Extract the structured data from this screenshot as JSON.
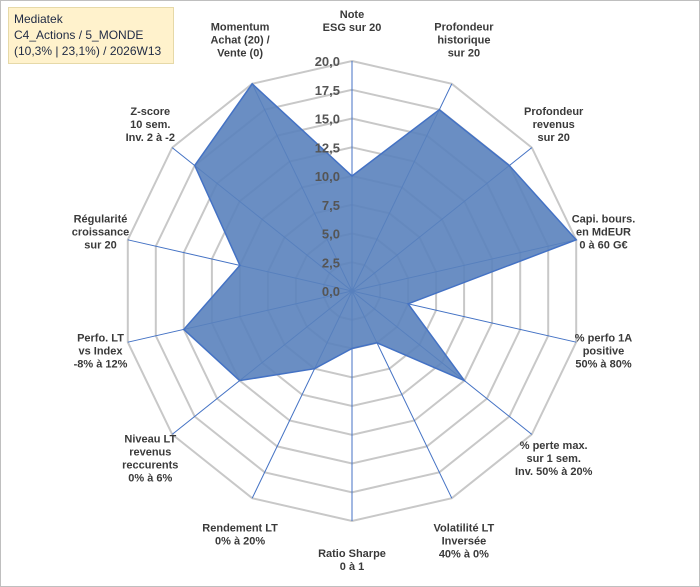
{
  "title": {
    "line1": "Mediatek",
    "line2": "C4_Actions / 5_MONDE",
    "line3": "(10,3% | 23,1%) / 2026W13"
  },
  "colors": {
    "fill": "#5a82bd",
    "stroke": "#4472c4",
    "grid": "#c8c8c8",
    "spoke": "#4472c4",
    "title_bg": "#fff2cc"
  },
  "chart_data": {
    "type": "radar",
    "r_min": 0,
    "r_max": 20,
    "ticks": [
      "0,0",
      "2,5",
      "5,0",
      "7,5",
      "10,0",
      "12,5",
      "15,0",
      "17,5",
      "20,0"
    ],
    "tick_values": [
      0,
      2.5,
      5,
      7.5,
      10,
      12.5,
      15,
      17.5,
      20
    ],
    "categories": [
      {
        "lines": [
          "Note",
          "ESG sur 20"
        ],
        "anchor": "middle"
      },
      {
        "lines": [
          "Profondeur",
          "historique",
          "sur 20"
        ],
        "anchor": "middle"
      },
      {
        "lines": [
          "Profondeur",
          "revenus",
          "sur 20"
        ],
        "anchor": "middle"
      },
      {
        "lines": [
          "Capi. bours.",
          "en MdEUR",
          "0 à 60 G€"
        ],
        "anchor": "middle"
      },
      {
        "lines": [
          "% perfo 1A",
          "positive",
          "50% à 80%"
        ],
        "anchor": "middle"
      },
      {
        "lines": [
          "% perte max.",
          "sur 1 sem.",
          "Inv. 50% à 20%"
        ],
        "anchor": "middle"
      },
      {
        "lines": [
          "Volatilité LT",
          "Inversée",
          "40% à 0%"
        ],
        "anchor": "middle"
      },
      {
        "lines": [
          "Ratio Sharpe",
          "0 à 1"
        ],
        "anchor": "middle"
      },
      {
        "lines": [
          "Rendement LT",
          "0% à 20%"
        ],
        "anchor": "middle"
      },
      {
        "lines": [
          "Niveau LT",
          "revenus",
          "reccurents",
          "0% à 6%"
        ],
        "anchor": "middle"
      },
      {
        "lines": [
          "Perfo. LT",
          "vs Index",
          "-8% à 12%"
        ],
        "anchor": "middle"
      },
      {
        "lines": [
          "Régularité",
          "croissance",
          "sur 20"
        ],
        "anchor": "middle"
      },
      {
        "lines": [
          "Z-score",
          "10 sem.",
          "Inv. 2 à -2"
        ],
        "anchor": "middle"
      },
      {
        "lines": [
          "Momentum",
          "Achat (20) /",
          "Vente (0)"
        ],
        "anchor": "middle"
      }
    ],
    "series": [
      {
        "name": "Mediatek",
        "values": [
          10.0,
          17.5,
          17.5,
          20.0,
          5.0,
          12.5,
          5.0,
          5.0,
          7.5,
          12.5,
          15.0,
          10.0,
          17.5,
          20.0
        ]
      }
    ]
  }
}
